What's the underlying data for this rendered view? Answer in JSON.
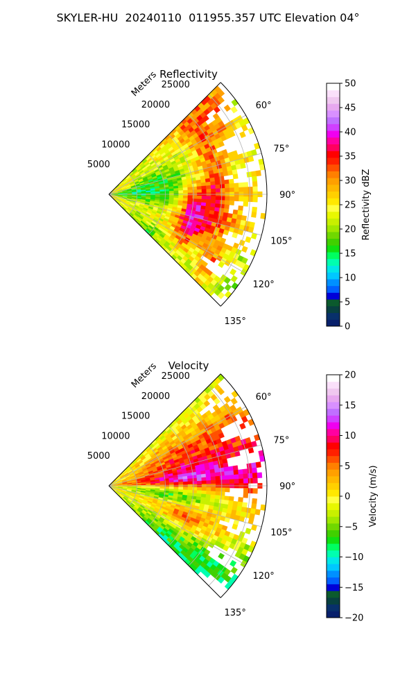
{
  "figure": {
    "suptitle": "SKYLER-HU  20240110  011955.357 UTC Elevation 04°"
  },
  "chart_data": [
    {
      "type": "heatmap",
      "subtype": "polar-sector",
      "title": "Reflectivity",
      "radial_label": "Meters",
      "radial_ticks": [
        5000,
        10000,
        15000,
        20000,
        25000
      ],
      "radial_tick_labels": [
        "5000",
        "10000",
        "15000",
        "20000",
        "25000"
      ],
      "rlim": [
        0,
        28000
      ],
      "angle_ticks": [
        60,
        75,
        90,
        105,
        120,
        135
      ],
      "angle_tick_labels": [
        "60°",
        "75°",
        "90°",
        "105°",
        "120°",
        "135°"
      ],
      "theta_range_deg": [
        45,
        135
      ],
      "grid": true,
      "colorbar": {
        "label": "Reflectivity dBZ",
        "vmin": 0,
        "vmax": 50,
        "ticks": [
          0,
          5,
          10,
          15,
          20,
          25,
          30,
          35,
          40,
          45,
          50
        ],
        "tick_labels": [
          "0",
          "5",
          "10",
          "15",
          "20",
          "25",
          "30",
          "35",
          "40",
          "45",
          "50"
        ]
      },
      "colormap": [
        "#08206b",
        "#08306b",
        "#084040",
        "#0b5a2d",
        "#0000d8",
        "#0060ff",
        "#0090ff",
        "#00c8ff",
        "#00e8e8",
        "#00ffb0",
        "#00ff60",
        "#10e010",
        "#40d000",
        "#70d800",
        "#a0e800",
        "#c8f000",
        "#e8f800",
        "#ffff40",
        "#ffe800",
        "#ffd000",
        "#ffb800",
        "#ffa000",
        "#ff8000",
        "#ff5000",
        "#ff2000",
        "#ff0000",
        "#ff0060",
        "#ff00a0",
        "#f000f0",
        "#d040ff",
        "#c070ff",
        "#d890ff",
        "#e8a8f0",
        "#f0c8f0",
        "#fae0fa",
        "#ffffff"
      ]
    },
    {
      "type": "heatmap",
      "subtype": "polar-sector",
      "title": "Velocity",
      "radial_label": "Meters",
      "radial_ticks": [
        5000,
        10000,
        15000,
        20000,
        25000
      ],
      "radial_tick_labels": [
        "5000",
        "10000",
        "15000",
        "20000",
        "25000"
      ],
      "rlim": [
        0,
        28000
      ],
      "angle_ticks": [
        60,
        75,
        90,
        105,
        120,
        135
      ],
      "angle_tick_labels": [
        "60°",
        "75°",
        "90°",
        "105°",
        "120°",
        "135°"
      ],
      "theta_range_deg": [
        45,
        135
      ],
      "grid": true,
      "colorbar": {
        "label": "Velocity (m/s)",
        "vmin": -20,
        "vmax": 20,
        "ticks": [
          -20,
          -15,
          -10,
          -5,
          0,
          5,
          10,
          15,
          20
        ],
        "tick_labels": [
          "−20",
          "−15",
          "−10",
          "−5",
          "0",
          "5",
          "10",
          "15",
          "20"
        ]
      },
      "colormap": [
        "#08206b",
        "#08306b",
        "#084040",
        "#0b5a2d",
        "#0000d8",
        "#0060ff",
        "#0090ff",
        "#00c8ff",
        "#00e8e8",
        "#00ffb0",
        "#00ff60",
        "#10e010",
        "#40d000",
        "#70d800",
        "#a0e800",
        "#c8f000",
        "#e8f800",
        "#ffff40",
        "#ffe800",
        "#ffd000",
        "#ffb800",
        "#ffa000",
        "#ff8000",
        "#ff5000",
        "#ff2000",
        "#ff0000",
        "#ff0060",
        "#ff00a0",
        "#f000f0",
        "#d040ff",
        "#c070ff",
        "#d890ff",
        "#e8a8f0",
        "#f0c8f0",
        "#fae0fa",
        "#ffffff"
      ]
    }
  ]
}
